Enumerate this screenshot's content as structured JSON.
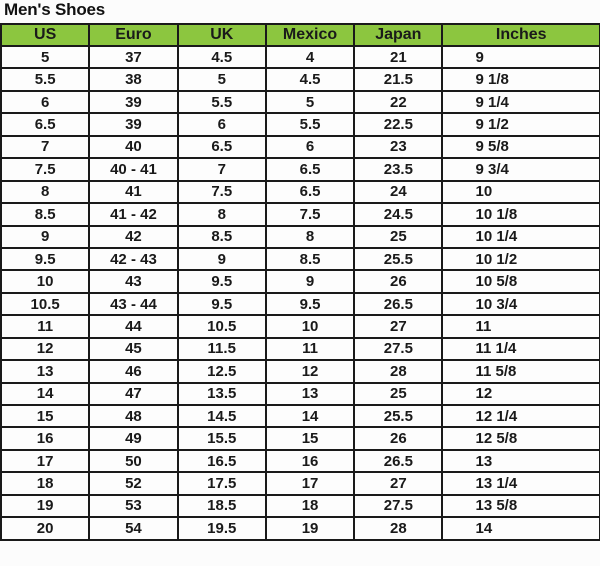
{
  "title": "Men's Shoes",
  "colors": {
    "header_bg": "#8cc63f",
    "border": "#1a1a1a"
  },
  "columns": [
    "US",
    "Euro",
    "UK",
    "Mexico",
    "Japan",
    "Inches"
  ],
  "rows": [
    [
      "5",
      "37",
      "4.5",
      "4",
      "21",
      "9"
    ],
    [
      "5.5",
      "38",
      "5",
      "4.5",
      "21.5",
      "9 1/8"
    ],
    [
      "6",
      "39",
      "5.5",
      "5",
      "22",
      "9 1/4"
    ],
    [
      "6.5",
      "39",
      "6",
      "5.5",
      "22.5",
      "9 1/2"
    ],
    [
      "7",
      "40",
      "6.5",
      "6",
      "23",
      "9 5/8"
    ],
    [
      "7.5",
      "40 - 41",
      "7",
      "6.5",
      "23.5",
      "9 3/4"
    ],
    [
      "8",
      "41",
      "7.5",
      "6.5",
      "24",
      "10"
    ],
    [
      "8.5",
      "41 - 42",
      "8",
      "7.5",
      "24.5",
      "10 1/8"
    ],
    [
      "9",
      "42",
      "8.5",
      "8",
      "25",
      "10 1/4"
    ],
    [
      "9.5",
      "42 - 43",
      "9",
      "8.5",
      "25.5",
      "10 1/2"
    ],
    [
      "10",
      "43",
      "9.5",
      "9",
      "26",
      "10 5/8"
    ],
    [
      "10.5",
      "43 - 44",
      "9.5",
      "9.5",
      "26.5",
      "10 3/4"
    ],
    [
      "11",
      "44",
      "10.5",
      "10",
      "27",
      "11"
    ],
    [
      "12",
      "45",
      "11.5",
      "11",
      "27.5",
      "11 1/4"
    ],
    [
      "13",
      "46",
      "12.5",
      "12",
      "28",
      "11 5/8"
    ],
    [
      "14",
      "47",
      "13.5",
      "13",
      "25",
      "12"
    ],
    [
      "15",
      "48",
      "14.5",
      "14",
      "25.5",
      "12 1/4"
    ],
    [
      "16",
      "49",
      "15.5",
      "15",
      "26",
      "12 5/8"
    ],
    [
      "17",
      "50",
      "16.5",
      "16",
      "26.5",
      "13"
    ],
    [
      "18",
      "52",
      "17.5",
      "17",
      "27",
      "13 1/4"
    ],
    [
      "19",
      "53",
      "18.5",
      "18",
      "27.5",
      "13 5/8"
    ],
    [
      "20",
      "54",
      "19.5",
      "19",
      "28",
      "14"
    ]
  ]
}
